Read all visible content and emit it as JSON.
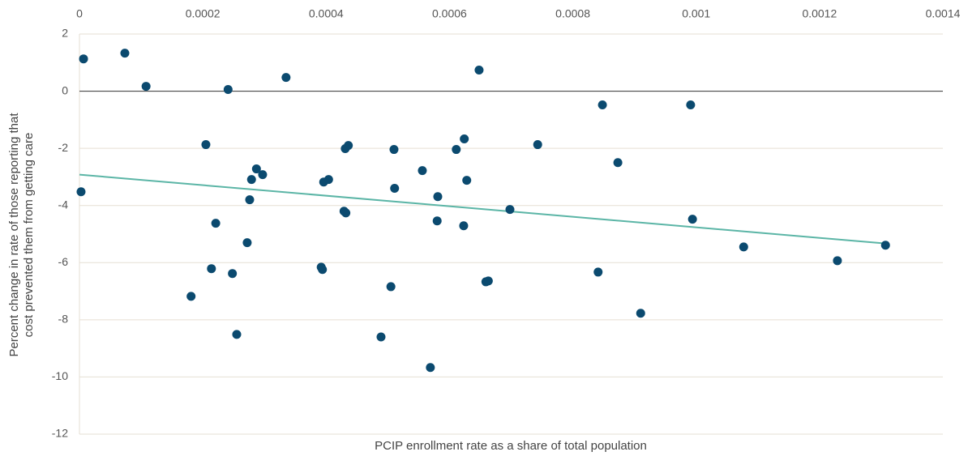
{
  "chart_data": {
    "type": "scatter",
    "x_label": "PCIP enrollment rate as a share of total population",
    "y_label": [
      "Percent change in rate of those reporting that",
      "cost prevented them from getting care"
    ],
    "xlim": [
      0,
      0.0014
    ],
    "xticks": [
      0,
      0.0002,
      0.0004,
      0.0006,
      0.0008,
      0.001,
      0.0012,
      0.0014
    ],
    "ylim": [
      -12,
      2
    ],
    "yticks": [
      -12,
      -10,
      -8,
      -6,
      -4,
      -2,
      0,
      2
    ],
    "grid": true,
    "color": "#0b4a6f",
    "x": [
      6.6e-06,
      7.36e-05,
      0.000108,
      0.000241,
      0.000335,
      0.000648,
      0.000848,
      0.000991,
      0.000205,
      2.6e-06,
      0.000287,
      0.000297,
      0.000279,
      0.000276,
      0.000221,
      0.000272,
      0.000214,
      0.000248,
      0.000181,
      0.000255,
      0.000436,
      0.000431,
      0.000404,
      0.000396,
      0.000429,
      0.000432,
      0.000392,
      0.000394,
      0.00051,
      0.000511,
      0.000556,
      0.000581,
      0.00058,
      0.000505,
      0.000489,
      0.000569,
      0.000624,
      0.000611,
      0.000628,
      0.000623,
      0.000659,
      0.000663,
      0.000698,
      0.000743,
      0.000873,
      0.000841,
      0.00091,
      0.000994,
      0.001077,
      0.001229,
      0.001307
    ],
    "values": [
      1.13,
      1.33,
      0.17,
      0.06,
      0.48,
      0.74,
      -0.48,
      -0.48,
      -1.87,
      -3.52,
      -2.72,
      -2.92,
      -3.09,
      -3.8,
      -4.62,
      -5.3,
      -6.21,
      -6.38,
      -7.18,
      -8.51,
      -1.9,
      -2.01,
      -3.09,
      -3.18,
      -4.2,
      -4.26,
      -6.16,
      -6.24,
      -2.04,
      -3.4,
      -2.78,
      -3.69,
      -4.54,
      -6.84,
      -8.6,
      -9.67,
      -1.67,
      -2.04,
      -3.12,
      -4.71,
      -6.67,
      -6.64,
      -4.14,
      -1.87,
      -2.5,
      -6.33,
      -7.77,
      -4.48,
      -5.45,
      -5.93,
      -5.39
    ],
    "trendline": {
      "color": "#5bb5a6",
      "x": [
        0,
        0.001307
      ],
      "values": [
        -2.92,
        -5.33
      ]
    }
  }
}
